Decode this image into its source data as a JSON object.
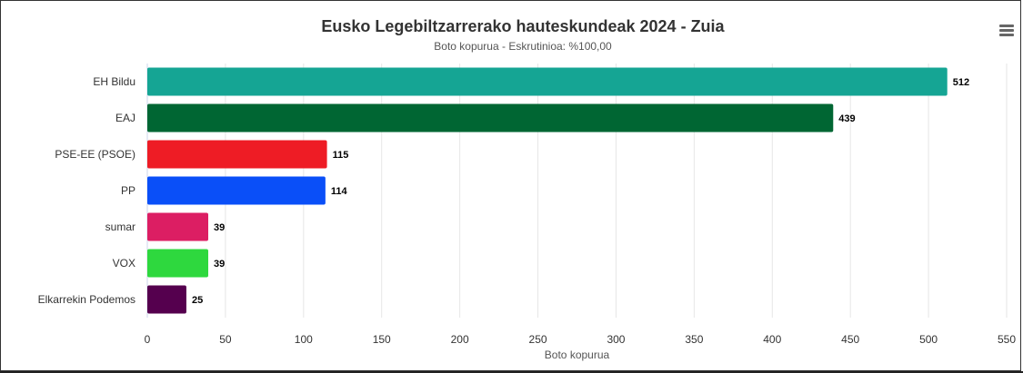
{
  "chart_data": {
    "type": "bar",
    "orientation": "horizontal",
    "title": "Eusko Legebiltzarrerako hauteskundeak 2024 - Zuia",
    "subtitle": "Boto kopurua - Eskrutinioa: %100,00",
    "xlabel": "Boto kopurua",
    "ylabel": "",
    "xlim": [
      0,
      550
    ],
    "xticks": [
      0,
      50,
      100,
      150,
      200,
      250,
      300,
      350,
      400,
      450,
      500,
      550
    ],
    "grid": true,
    "legend": "none",
    "categories": [
      "EH Bildu",
      "EAJ",
      "PSE-EE (PSOE)",
      "PP",
      "sumar",
      "VOX",
      "Elkarrekin Podemos"
    ],
    "values": [
      512,
      439,
      115,
      114,
      39,
      39,
      25
    ],
    "colors": [
      "#15a594",
      "#006633",
      "#ee1c25",
      "#0a4ff8",
      "#dc1e63",
      "#2ed83e",
      "#55004e"
    ]
  },
  "menu_icon": "hamburger-menu-icon"
}
